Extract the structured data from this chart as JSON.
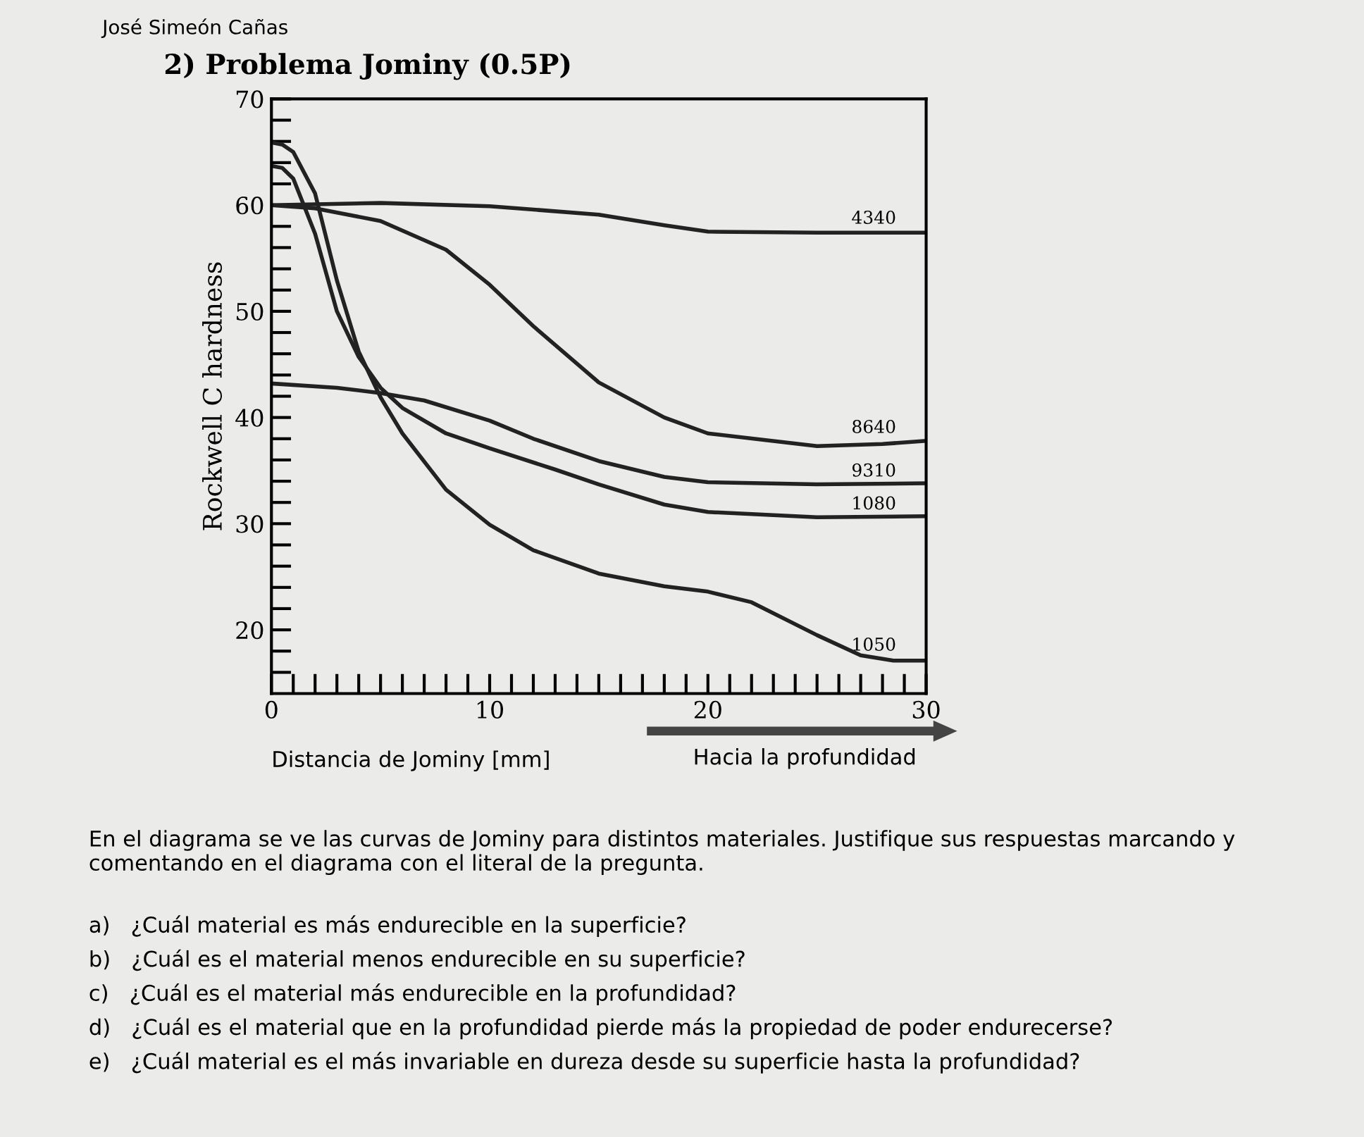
{
  "chart_data": {
    "type": "line",
    "title": "2) Problema Jominy (0.5P)",
    "xlabel": "Distancia de Jominy [mm]",
    "ylabel": "Rockwell C hardness",
    "xlim": [
      0,
      30
    ],
    "ylim": [
      14,
      70
    ],
    "xticks": [
      0,
      {
        "value": 1,
        "label": null
      },
      {
        "value": 2,
        "label": null
      },
      {
        "value": 3,
        "label": null
      },
      {
        "value": 4,
        "label": null
      },
      {
        "value": 5,
        "label": null
      },
      {
        "value": 6,
        "label": null
      },
      {
        "value": 7,
        "label": null
      },
      {
        "value": 8,
        "label": null
      },
      {
        "value": 9,
        "label": null
      },
      10,
      {
        "value": 11,
        "label": null
      },
      {
        "value": 12,
        "label": null
      },
      {
        "value": 13,
        "label": null
      },
      {
        "value": 14,
        "label": null
      },
      {
        "value": 15,
        "label": null
      },
      {
        "value": 16,
        "label": null
      },
      {
        "value": 17,
        "label": null
      },
      {
        "value": 18,
        "label": null
      },
      {
        "value": 19,
        "label": null
      },
      20,
      {
        "value": 21,
        "label": null
      },
      {
        "value": 22,
        "label": null
      },
      {
        "value": 23,
        "label": null
      },
      {
        "value": 24,
        "label": null
      },
      {
        "value": 25,
        "label": null
      },
      {
        "value": 26,
        "label": null
      },
      {
        "value": 27,
        "label": null
      },
      {
        "value": 28,
        "label": null
      },
      {
        "value": 29,
        "label": null
      },
      30
    ],
    "yticks": [
      {
        "value": 16,
        "label": null
      },
      {
        "value": 18,
        "label": null
      },
      20,
      {
        "value": 22,
        "label": null
      },
      {
        "value": 24,
        "label": null
      },
      {
        "value": 26,
        "label": null
      },
      {
        "value": 28,
        "label": null
      },
      30,
      {
        "value": 32,
        "label": null
      },
      {
        "value": 34,
        "label": null
      },
      {
        "value": 36,
        "label": null
      },
      {
        "value": 38,
        "label": null
      },
      40,
      {
        "value": 42,
        "label": null
      },
      {
        "value": 44,
        "label": null
      },
      {
        "value": 46,
        "label": null
      },
      {
        "value": 48,
        "label": null
      },
      50,
      {
        "value": 52,
        "label": null
      },
      {
        "value": 54,
        "label": null
      },
      {
        "value": 56,
        "label": null
      },
      {
        "value": 58,
        "label": null
      },
      60,
      {
        "value": 62,
        "label": null
      },
      {
        "value": 64,
        "label": null
      },
      {
        "value": 66,
        "label": null
      },
      {
        "value": 68,
        "label": null
      },
      70
    ],
    "grid": false,
    "legend": false,
    "marker": "none",
    "line_style": "solid",
    "series": [
      {
        "name": "4340",
        "color": "#222222",
        "x": [
          0,
          5,
          10,
          15,
          18,
          20,
          25,
          30
        ],
        "values": [
          60,
          60.2,
          59.9,
          59.1,
          58.1,
          57.5,
          57.4,
          57.4
        ]
      },
      {
        "name": "8640",
        "color": "#222222",
        "x": [
          0,
          2,
          5,
          8,
          10,
          12,
          15,
          18,
          20,
          25,
          28,
          30
        ],
        "values": [
          60,
          59.7,
          58.5,
          55.8,
          52.5,
          48.6,
          43.3,
          40,
          38.5,
          37.3,
          37.5,
          37.8
        ]
      },
      {
        "name": "9310",
        "color": "#222222",
        "x": [
          0,
          3,
          5,
          7,
          10,
          12,
          15,
          18,
          20,
          25,
          30
        ],
        "values": [
          43.2,
          42.8,
          42.3,
          41.6,
          39.7,
          38,
          35.9,
          34.4,
          33.9,
          33.7,
          33.8
        ]
      },
      {
        "name": "1080",
        "color": "#222222",
        "x": [
          0,
          0.5,
          1,
          2,
          3,
          4,
          5,
          6,
          8,
          10,
          13,
          15,
          18,
          20,
          25,
          30
        ],
        "values": [
          63.7,
          63.5,
          62.5,
          57.3,
          50,
          45.7,
          42.8,
          40.9,
          38.5,
          37.1,
          35.1,
          33.7,
          31.8,
          31.1,
          30.6,
          30.7
        ]
      },
      {
        "name": "1050",
        "color": "#222222",
        "x": [
          0,
          0.5,
          1,
          2,
          3,
          4,
          5,
          6,
          8,
          10,
          12,
          15,
          18,
          20,
          22,
          25,
          27,
          28.5,
          30
        ],
        "values": [
          65.9,
          65.7,
          65,
          61.1,
          52.9,
          46.2,
          41.9,
          38.5,
          33.2,
          29.9,
          27.5,
          25.3,
          24.1,
          23.6,
          22.6,
          19.5,
          17.6,
          17.1,
          17.1
        ]
      }
    ],
    "annotations": [
      "José Simeón Cañas",
      "Hacia la profundidad",
      "En el diagrama se ve las curvas de Jominy para distintos materiales. Justifique sus respuestas marcando y comentando en el diagrama con el literal de la pregunta.",
      "a)   ¿Cuál material es más endurecible en la superficie?",
      "b)   ¿Cuál es el material menos endurecible en su superficie?",
      "c)   ¿Cuál es el material más endurecible en la profundidad?",
      "d)   ¿Cuál es el material que en la profundidad pierde más la propiedad de poder endurecerse?",
      "e)   ¿Cuál material es el más invariable en dureza desde su superficie hasta la profundidad?"
    ]
  }
}
